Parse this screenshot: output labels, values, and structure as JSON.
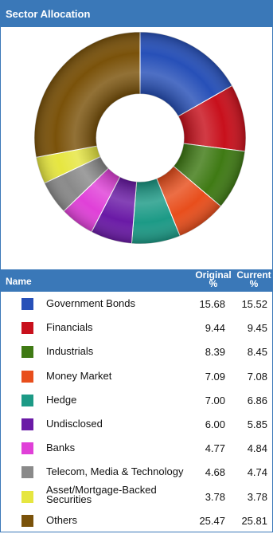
{
  "panel": {
    "title": "Sector Allocation"
  },
  "table": {
    "col_name": "Name",
    "col_original_line1": "Original",
    "col_original_line2": "%",
    "col_current_line1": "Current",
    "col_current_line2": "%"
  },
  "chart_data": {
    "type": "pie",
    "title": "",
    "categories": [
      "Government Bonds",
      "Financials",
      "Industrials",
      "Money Market",
      "Hedge",
      "Undisclosed",
      "Banks",
      "Telecom, Media & Technology",
      "Asset/Mortgage-Backed Securities",
      "Others"
    ],
    "series": [
      {
        "name": "Original %",
        "values": [
          15.68,
          9.44,
          8.39,
          7.09,
          7.0,
          6.0,
          4.77,
          4.68,
          3.78,
          25.47
        ]
      },
      {
        "name": "Current %",
        "values": [
          15.52,
          9.45,
          8.45,
          7.08,
          6.86,
          5.85,
          4.84,
          4.74,
          3.78,
          25.81
        ]
      }
    ],
    "colors": [
      "#2750b8",
      "#c8101c",
      "#3f7a14",
      "#e84e1c",
      "#1c9a86",
      "#6a1aa6",
      "#e040d8",
      "#8a8a8a",
      "#e6e640",
      "#7a520a"
    ],
    "donut": true
  },
  "rows": [
    {
      "name": "Government Bonds",
      "original": "15.68",
      "current": "15.52"
    },
    {
      "name": "Financials",
      "original": "9.44",
      "current": "9.45"
    },
    {
      "name": "Industrials",
      "original": "8.39",
      "current": "8.45"
    },
    {
      "name": "Money Market",
      "original": "7.09",
      "current": "7.08"
    },
    {
      "name": "Hedge",
      "original": "7.00",
      "current": "6.86"
    },
    {
      "name": "Undisclosed",
      "original": "6.00",
      "current": "5.85"
    },
    {
      "name": "Banks",
      "original": "4.77",
      "current": "4.84"
    },
    {
      "name": "Telecom, Media & Technology",
      "original": "4.68",
      "current": "4.74"
    },
    {
      "name": "Asset/Mortgage-Backed Securities",
      "original": "3.78",
      "current": "3.78"
    },
    {
      "name": "Others",
      "original": "25.47",
      "current": "25.81"
    }
  ]
}
